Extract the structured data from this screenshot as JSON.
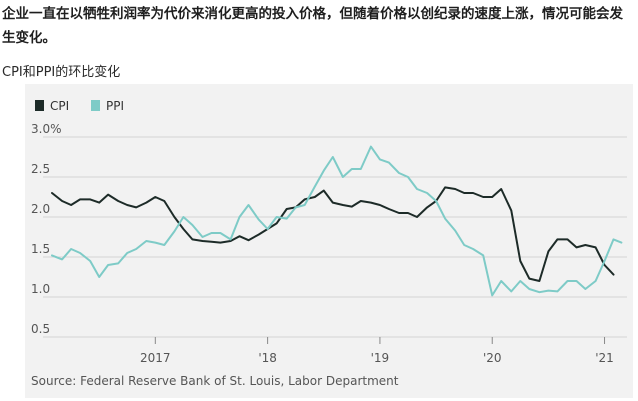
{
  "article": {
    "headline": "企业一直在以牺牲利润率为代价来消化更高的投入价格，但随着价格以创纪录的速度上涨，情况可能会发生变化。"
  },
  "chart_data": {
    "type": "line",
    "title": "CPI和PPI的环比变化",
    "source": "Source: Federal Reserve Bank of St. Louis, Labor Department",
    "legend_position": "top-left",
    "grid": true,
    "x_axis": {
      "unit": "year",
      "range": [
        2016.0,
        2021.2
      ],
      "ticks": [
        2017,
        2018,
        2019,
        2020,
        2021
      ],
      "tick_labels": [
        "2017",
        "'18",
        "'19",
        "'20",
        "'21"
      ]
    },
    "y_axis": {
      "range": [
        0.5,
        3.0
      ],
      "ticks": [
        0.5,
        1.0,
        1.5,
        2.0,
        2.5,
        3.0
      ],
      "tick_labels": [
        "0.5",
        "1.0",
        "1.5",
        "2.0",
        "2.5",
        "3.0%"
      ]
    },
    "series": [
      {
        "name": "CPI",
        "color": "#1d2b28",
        "x": [
          2016.08,
          2016.17,
          2016.25,
          2016.33,
          2016.42,
          2016.5,
          2016.58,
          2016.67,
          2016.75,
          2016.83,
          2016.92,
          2017.0,
          2017.08,
          2017.17,
          2017.25,
          2017.33,
          2017.42,
          2017.5,
          2017.58,
          2017.67,
          2017.75,
          2017.83,
          2017.92,
          2018.0,
          2018.08,
          2018.17,
          2018.25,
          2018.33,
          2018.42,
          2018.5,
          2018.58,
          2018.67,
          2018.75,
          2018.83,
          2018.92,
          2019.0,
          2019.08,
          2019.17,
          2019.25,
          2019.33,
          2019.42,
          2019.5,
          2019.58,
          2019.67,
          2019.75,
          2019.83,
          2019.92,
          2020.0,
          2020.08,
          2020.17,
          2020.25,
          2020.33,
          2020.42,
          2020.5,
          2020.58,
          2020.67,
          2020.75,
          2020.83,
          2020.92,
          2021.0,
          2021.08
        ],
        "y": [
          2.3,
          2.2,
          2.15,
          2.22,
          2.22,
          2.18,
          2.28,
          2.2,
          2.15,
          2.12,
          2.18,
          2.25,
          2.2,
          2.0,
          1.85,
          1.72,
          1.7,
          1.69,
          1.68,
          1.7,
          1.76,
          1.71,
          1.78,
          1.85,
          1.92,
          2.1,
          2.12,
          2.22,
          2.25,
          2.33,
          2.18,
          2.15,
          2.13,
          2.2,
          2.18,
          2.15,
          2.1,
          2.05,
          2.05,
          2.0,
          2.12,
          2.2,
          2.37,
          2.35,
          2.3,
          2.3,
          2.25,
          2.25,
          2.35,
          2.08,
          1.45,
          1.23,
          1.2,
          1.57,
          1.72,
          1.72,
          1.62,
          1.65,
          1.62,
          1.4,
          1.28
        ]
      },
      {
        "name": "PPI",
        "color": "#7ecbc7",
        "x": [
          2016.08,
          2016.17,
          2016.25,
          2016.33,
          2016.42,
          2016.5,
          2016.58,
          2016.67,
          2016.75,
          2016.83,
          2016.92,
          2017.0,
          2017.08,
          2017.17,
          2017.25,
          2017.33,
          2017.42,
          2017.5,
          2017.58,
          2017.67,
          2017.75,
          2017.83,
          2017.92,
          2018.0,
          2018.08,
          2018.17,
          2018.25,
          2018.33,
          2018.42,
          2018.5,
          2018.58,
          2018.67,
          2018.75,
          2018.83,
          2018.92,
          2019.0,
          2019.08,
          2019.17,
          2019.25,
          2019.33,
          2019.42,
          2019.5,
          2019.58,
          2019.67,
          2019.75,
          2019.83,
          2019.92,
          2020.0,
          2020.08,
          2020.17,
          2020.25,
          2020.33,
          2020.42,
          2020.5,
          2020.58,
          2020.67,
          2020.75,
          2020.83,
          2020.92,
          2021.0,
          2021.08,
          2021.15
        ],
        "y": [
          1.52,
          1.47,
          1.6,
          1.55,
          1.45,
          1.25,
          1.4,
          1.42,
          1.55,
          1.6,
          1.7,
          1.68,
          1.65,
          1.82,
          2.0,
          1.9,
          1.75,
          1.8,
          1.8,
          1.72,
          2.0,
          2.15,
          1.97,
          1.85,
          2.0,
          1.98,
          2.12,
          2.15,
          2.38,
          2.58,
          2.75,
          2.5,
          2.6,
          2.6,
          2.88,
          2.72,
          2.68,
          2.55,
          2.5,
          2.35,
          2.3,
          2.2,
          1.98,
          1.83,
          1.65,
          1.6,
          1.52,
          1.02,
          1.2,
          1.07,
          1.2,
          1.1,
          1.06,
          1.08,
          1.07,
          1.2,
          1.2,
          1.1,
          1.2,
          1.45,
          1.72,
          1.68
        ]
      }
    ]
  }
}
